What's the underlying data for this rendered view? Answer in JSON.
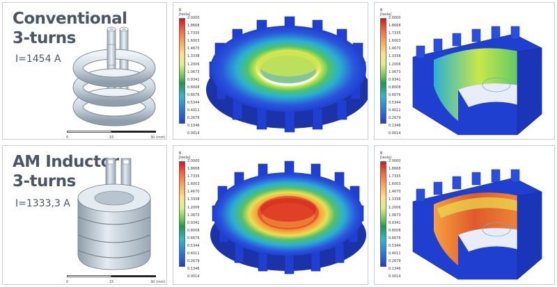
{
  "rows": [
    {
      "title_line1": "Conventional",
      "title_line2": "3-turns",
      "current": "I=1454 A"
    },
    {
      "title_line1": "AM Inductor",
      "title_line2": "3-turns",
      "current": "I=1333,3 A"
    }
  ],
  "scale": {
    "ticks": [
      "0",
      "15",
      "30 (mm)"
    ]
  },
  "legend": {
    "symbol": "B",
    "unit": "[tesla]",
    "max_values": [
      "2.0000",
      "2.0000",
      "2.0000",
      "2.0000"
    ],
    "values": [
      "1.8668",
      "1.7335",
      "1.6003",
      "1.4670",
      "1.3338",
      "1.2006",
      "1.0673",
      "0.9341",
      "0.8008",
      "0.6676",
      "0.5344",
      "0.4011",
      "0.2679",
      "0.1346",
      "0.0014"
    ]
  },
  "colors": {
    "title_text": "#4a5566",
    "coil_light": "#d9e2ea",
    "coil_dark": "#8f9eab",
    "gear_base": "#1f3fd0",
    "field_hot": "#d7191c"
  }
}
